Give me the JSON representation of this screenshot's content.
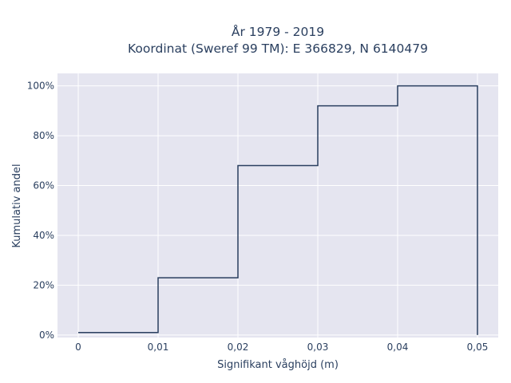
{
  "chart_data": {
    "type": "line",
    "line_shape": "step",
    "title_lines": [
      "År 1979 - 2019",
      "Koordinat (Sweref 99 TM): E 366829, N 6140479"
    ],
    "xlabel": "Signifikant våghöjd (m)",
    "ylabel": "Kumulativ andel",
    "x_ticks": [
      0,
      0.01,
      0.02,
      0.03,
      0.04,
      0.05
    ],
    "x_tick_labels": [
      "0",
      "0,01",
      "0,02",
      "0,03",
      "0,04",
      "0,05"
    ],
    "y_ticks": [
      0,
      0.2,
      0.4,
      0.6,
      0.8,
      1.0
    ],
    "y_tick_labels": [
      "0%",
      "20%",
      "40%",
      "60%",
      "80%",
      "100%"
    ],
    "xlim": [
      -0.0026,
      0.0526
    ],
    "ylim": [
      -0.01,
      1.05
    ],
    "grid": true,
    "colors": {
      "plot_bg": "#e5e5f0",
      "grid": "#ffffff",
      "line": "#2a3f5f",
      "text": "#2a3f5f"
    },
    "series": [
      {
        "x": [
          0,
          0.01,
          0.01,
          0.02,
          0.02,
          0.03,
          0.03,
          0.04,
          0.04,
          0.05,
          0.05
        ],
        "y": [
          0.01,
          0.01,
          0.23,
          0.23,
          0.68,
          0.68,
          0.92,
          0.92,
          1.0,
          1.0,
          0.0
        ]
      }
    ]
  }
}
